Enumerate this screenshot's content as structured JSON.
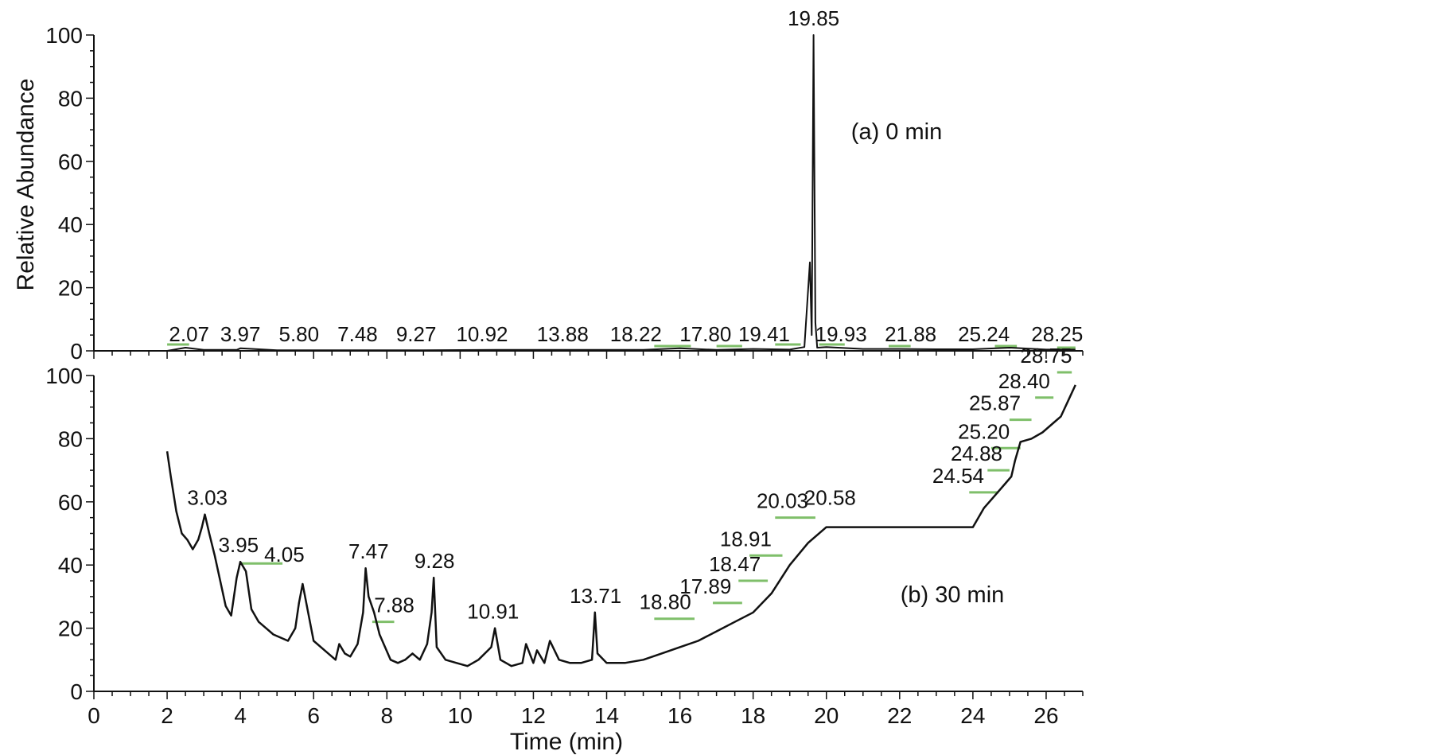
{
  "colors": {
    "trace": "#111111",
    "axis": "#111111",
    "marker": "#7fbf6a",
    "background": "#ffffff"
  },
  "chart_data": {
    "type": "line",
    "xlabel": "Time (min)",
    "ylabel": "Relative Abundance",
    "xlim": [
      0,
      27
    ],
    "x_ticks": [
      0,
      2,
      4,
      6,
      8,
      10,
      12,
      14,
      16,
      18,
      20,
      22,
      24,
      26
    ],
    "x_tick_labels": [
      "0",
      "2",
      "4",
      "6",
      "8",
      "10",
      "12",
      "14",
      "16",
      "18",
      "20",
      "22",
      "24",
      "26"
    ],
    "legend": "none",
    "grid": false,
    "panels": [
      {
        "label": "(a) 0 min",
        "ylim": [
          0,
          100
        ],
        "y_ticks": [
          0,
          20,
          40,
          60,
          80,
          100
        ],
        "y_tick_labels": [
          "0",
          "20",
          "40",
          "60",
          "80",
          "100"
        ],
        "series": [
          {
            "x": [
              2.0,
              2.5,
              3.0,
              3.9,
              4.0,
              5.0,
              7.0,
              9.0,
              11.0,
              13.0,
              15.0,
              16.0,
              17.0,
              18.0,
              19.0,
              19.4,
              19.55,
              19.6,
              19.65,
              19.7,
              19.75,
              20.0,
              21.0,
              22.0,
              23.0,
              24.0,
              25.0,
              26.0,
              26.8
            ],
            "y": [
              0,
              1,
              0.3,
              0.3,
              0.8,
              0.2,
              0.2,
              0.2,
              0.3,
              0.3,
              0.3,
              0.8,
              0.3,
              0.6,
              0.4,
              1.2,
              28,
              5,
              100,
              9,
              1,
              1.2,
              0.6,
              0.6,
              0.5,
              0.5,
              1.0,
              0.4,
              0.4
            ]
          }
        ],
        "peak_labels": [
          {
            "text": "19.85",
            "x": 19.65,
            "y": 100
          },
          {
            "text": "2.07",
            "x": 2.6,
            "y": 0
          },
          {
            "text": "3.97",
            "x": 4.0,
            "y": 0
          },
          {
            "text": "5.80",
            "x": 5.6,
            "y": 0
          },
          {
            "text": "7.48",
            "x": 7.2,
            "y": 0
          },
          {
            "text": "9.27",
            "x": 8.8,
            "y": 0
          },
          {
            "text": "10.92",
            "x": 10.6,
            "y": 0
          },
          {
            "text": "13.88",
            "x": 12.8,
            "y": 0
          },
          {
            "text": "18.22",
            "x": 14.8,
            "y": 0
          },
          {
            "text": "17.80",
            "x": 16.7,
            "y": 0
          },
          {
            "text": "19.41",
            "x": 18.3,
            "y": 0
          },
          {
            "text": "19.93",
            "x": 20.4,
            "y": 0
          },
          {
            "text": "21.88",
            "x": 22.3,
            "y": 0
          },
          {
            "text": "25.24",
            "x": 24.3,
            "y": 0
          },
          {
            "text": "28.25",
            "x": 26.3,
            "y": 0
          }
        ],
        "markers": [
          {
            "x1": 2.0,
            "x2": 2.6,
            "y": 2
          },
          {
            "x1": 15.3,
            "x2": 16.3,
            "y": 1.5
          },
          {
            "x1": 17.0,
            "x2": 17.7,
            "y": 1.5
          },
          {
            "x1": 18.6,
            "x2": 19.3,
            "y": 2
          },
          {
            "x1": 19.8,
            "x2": 20.5,
            "y": 2
          },
          {
            "x1": 21.7,
            "x2": 22.3,
            "y": 1.5
          },
          {
            "x1": 24.6,
            "x2": 25.2,
            "y": 1.5
          },
          {
            "x1": 26.3,
            "x2": 26.8,
            "y": 1
          }
        ]
      },
      {
        "label": "(b) 30 min",
        "ylim": [
          0,
          100
        ],
        "y_ticks": [
          0,
          20,
          40,
          60,
          80,
          100
        ],
        "y_tick_labels": [
          "0",
          "20",
          "40",
          "60",
          "80",
          "100"
        ],
        "series": [
          {
            "x": [
              2.0,
              2.1,
              2.25,
              2.4,
              2.55,
              2.7,
              2.85,
              2.95,
              3.03,
              3.15,
              3.3,
              3.45,
              3.6,
              3.75,
              3.9,
              4.0,
              4.15,
              4.3,
              4.5,
              4.7,
              4.9,
              5.1,
              5.3,
              5.5,
              5.6,
              5.7,
              5.85,
              6.0,
              6.3,
              6.6,
              6.7,
              6.85,
              7.0,
              7.2,
              7.35,
              7.42,
              7.5,
              7.65,
              7.8,
              7.95,
              8.1,
              8.3,
              8.5,
              8.7,
              8.9,
              9.1,
              9.22,
              9.28,
              9.36,
              9.6,
              9.9,
              10.2,
              10.5,
              10.85,
              10.95,
              11.1,
              11.4,
              11.7,
              11.8,
              12.0,
              12.1,
              12.3,
              12.45,
              12.7,
              13.0,
              13.3,
              13.6,
              13.68,
              13.75,
              14.0,
              14.5,
              15.0,
              15.5,
              16.0,
              16.5,
              17.0,
              17.5,
              18.0,
              18.5,
              19.0,
              19.5,
              20.0,
              20.5,
              21.0,
              22.0,
              23.0,
              24.0,
              24.3,
              24.6,
              24.9,
              25.05,
              25.15,
              25.3,
              25.6,
              25.9,
              26.2,
              26.4,
              26.6,
              26.8
            ],
            "y": [
              76,
              68,
              57,
              50,
              48,
              45,
              48,
              52,
              56,
              50,
              43,
              35,
              27,
              24,
              36,
              41,
              38,
              26,
              22,
              20,
              18,
              17,
              16,
              20,
              28,
              34,
              25,
              16,
              13,
              10,
              15,
              12,
              11,
              15,
              25,
              39,
              30,
              25,
              18,
              14,
              10,
              9,
              10,
              12,
              10,
              15,
              25,
              36,
              14,
              10,
              9,
              8,
              10,
              14,
              20,
              10,
              8,
              9,
              15,
              9,
              13,
              9,
              16,
              10,
              9,
              9,
              10,
              25,
              12,
              9,
              9,
              10,
              12,
              14,
              16,
              19,
              22,
              25,
              31,
              40,
              47,
              52,
              52,
              52,
              52,
              52,
              52,
              58,
              62,
              66,
              68,
              73,
              79,
              80,
              82,
              85,
              87,
              92,
              97
            ]
          }
        ],
        "peak_labels": [
          {
            "text": "3.03",
            "x": 3.1,
            "y": 56
          },
          {
            "text": "3.95",
            "x": 3.95,
            "y": 41
          },
          {
            "text": "4.05",
            "x": 5.2,
            "y": 38
          },
          {
            "text": "7.47",
            "x": 7.5,
            "y": 39
          },
          {
            "text": "7.88",
            "x": 8.2,
            "y": 22
          },
          {
            "text": "9.28",
            "x": 9.3,
            "y": 36
          },
          {
            "text": "10.91",
            "x": 10.9,
            "y": 20
          },
          {
            "text": "13.71",
            "x": 13.7,
            "y": 25
          },
          {
            "text": "18.80",
            "x": 15.6,
            "y": 23
          },
          {
            "text": "17.89",
            "x": 16.7,
            "y": 28
          },
          {
            "text": "18.47",
            "x": 17.5,
            "y": 35
          },
          {
            "text": "18.91",
            "x": 17.8,
            "y": 43
          },
          {
            "text": "20.03",
            "x": 18.8,
            "y": 55
          },
          {
            "text": "20.58",
            "x": 20.1,
            "y": 56
          },
          {
            "text": "24.54",
            "x": 23.6,
            "y": 63
          },
          {
            "text": "24.88",
            "x": 24.1,
            "y": 70
          },
          {
            "text": "25.20",
            "x": 24.3,
            "y": 77
          },
          {
            "text": "25.87",
            "x": 24.6,
            "y": 86
          },
          {
            "text": "28.40",
            "x": 25.4,
            "y": 93
          },
          {
            "text": "28.75",
            "x": 26.0,
            "y": 101
          }
        ],
        "markers": [
          {
            "x1": 4.0,
            "x2": 5.15,
            "y": 40.5
          },
          {
            "x1": 7.6,
            "x2": 8.2,
            "y": 22
          },
          {
            "x1": 15.3,
            "x2": 16.4,
            "y": 23
          },
          {
            "x1": 16.9,
            "x2": 17.7,
            "y": 28
          },
          {
            "x1": 17.6,
            "x2": 18.4,
            "y": 35
          },
          {
            "x1": 17.9,
            "x2": 18.8,
            "y": 43
          },
          {
            "x1": 18.6,
            "x2": 19.7,
            "y": 55
          },
          {
            "x1": 23.9,
            "x2": 24.7,
            "y": 63
          },
          {
            "x1": 24.4,
            "x2": 25.0,
            "y": 70
          },
          {
            "x1": 24.5,
            "x2": 25.3,
            "y": 77
          },
          {
            "x1": 25.0,
            "x2": 25.6,
            "y": 86
          },
          {
            "x1": 25.7,
            "x2": 26.2,
            "y": 93
          },
          {
            "x1": 26.3,
            "x2": 26.7,
            "y": 101
          }
        ]
      }
    ]
  }
}
